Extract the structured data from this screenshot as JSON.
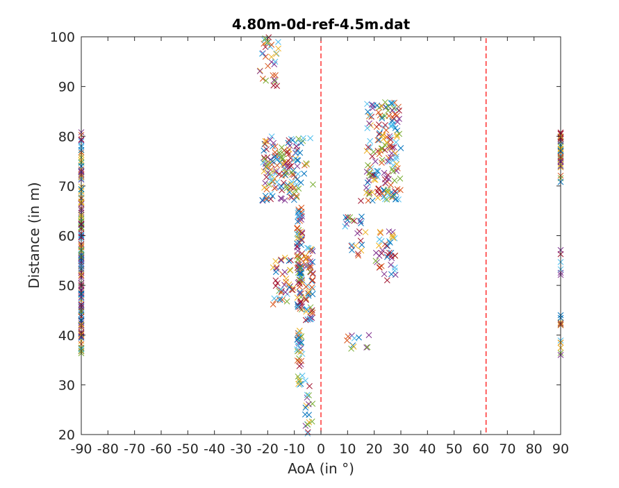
{
  "chart_data": {
    "type": "scatter",
    "title": "4.80m-0d-ref-4.5m.dat",
    "xlabel": "AoA (in °)",
    "ylabel": "Distance (in m)",
    "xlim": [
      -90,
      90
    ],
    "ylim": [
      20,
      100
    ],
    "x_ticks": [
      "-90",
      "-80",
      "-70",
      "-60",
      "-50",
      "-40",
      "-30",
      "-20",
      "-10",
      "0",
      "10",
      "20",
      "30",
      "40",
      "50",
      "60",
      "70",
      "80",
      "90"
    ],
    "y_ticks": [
      "20",
      "30",
      "40",
      "50",
      "60",
      "70",
      "80",
      "90",
      "100"
    ],
    "grid": false,
    "marker": "x",
    "palette": [
      "#0072BD",
      "#D95319",
      "#EDB120",
      "#7E2F8E",
      "#77AC30",
      "#4DBEEE",
      "#A2142F"
    ],
    "reference_lines": [
      {
        "x": 0,
        "color": "#FF0000",
        "style": "dashed"
      },
      {
        "x": 62,
        "color": "#FF0000",
        "style": "dashed"
      }
    ],
    "clusters": [
      {
        "x": [
          -90,
          -90
        ],
        "y": [
          36,
          81
        ],
        "count": 170
      },
      {
        "x": [
          -23,
          -16
        ],
        "y": [
          90,
          100
        ],
        "count": 32
      },
      {
        "x": [
          -22,
          -8
        ],
        "y": [
          67,
          80
        ],
        "count": 140
      },
      {
        "x": [
          -9,
          -5
        ],
        "y": [
          70,
          80
        ],
        "count": 12
      },
      {
        "x": [
          -9,
          -7
        ],
        "y": [
          45,
          66
        ],
        "count": 90
      },
      {
        "x": [
          -9,
          -7
        ],
        "y": [
          30,
          41
        ],
        "count": 38
      },
      {
        "x": [
          -18,
          -10
        ],
        "y": [
          46,
          56
        ],
        "count": 40
      },
      {
        "x": [
          -6,
          -3
        ],
        "y": [
          43,
          58
        ],
        "count": 55
      },
      {
        "x": [
          -6,
          -3
        ],
        "y": [
          20,
          31
        ],
        "count": 16
      },
      {
        "x": [
          17,
          30
        ],
        "y": [
          67,
          87
        ],
        "count": 170
      },
      {
        "x": [
          9,
          17
        ],
        "y": [
          56,
          64
        ],
        "count": 22
      },
      {
        "x": [
          20,
          28
        ],
        "y": [
          51,
          61
        ],
        "count": 40
      },
      {
        "x": [
          9,
          18
        ],
        "y": [
          37,
          40
        ],
        "count": 10
      },
      {
        "x": [
          90,
          90
        ],
        "y": [
          70,
          81
        ],
        "count": 40
      },
      {
        "x": [
          90,
          90
        ],
        "y": [
          52,
          58
        ],
        "count": 6
      },
      {
        "x": [
          90,
          90
        ],
        "y": [
          36,
          44
        ],
        "count": 8
      }
    ],
    "points": [
      {
        "x": 90,
        "y": 44
      },
      {
        "x": 90,
        "y": 42
      },
      {
        "x": 90,
        "y": 38.5
      },
      {
        "x": 90,
        "y": 36
      },
      {
        "x": -3,
        "y": 70.3
      },
      {
        "x": -4,
        "y": 79.6
      },
      {
        "x": 15,
        "y": 67
      },
      {
        "x": 28,
        "y": 67.3
      },
      {
        "x": 23,
        "y": 68.5
      },
      {
        "x": 25,
        "y": 68.7
      },
      {
        "x": 18,
        "y": 40
      },
      {
        "x": -5,
        "y": 22
      },
      {
        "x": -5,
        "y": 20.2
      },
      {
        "x": -17,
        "y": 51
      },
      {
        "x": 15,
        "y": 62.5
      },
      {
        "x": 14,
        "y": 56
      }
    ]
  }
}
